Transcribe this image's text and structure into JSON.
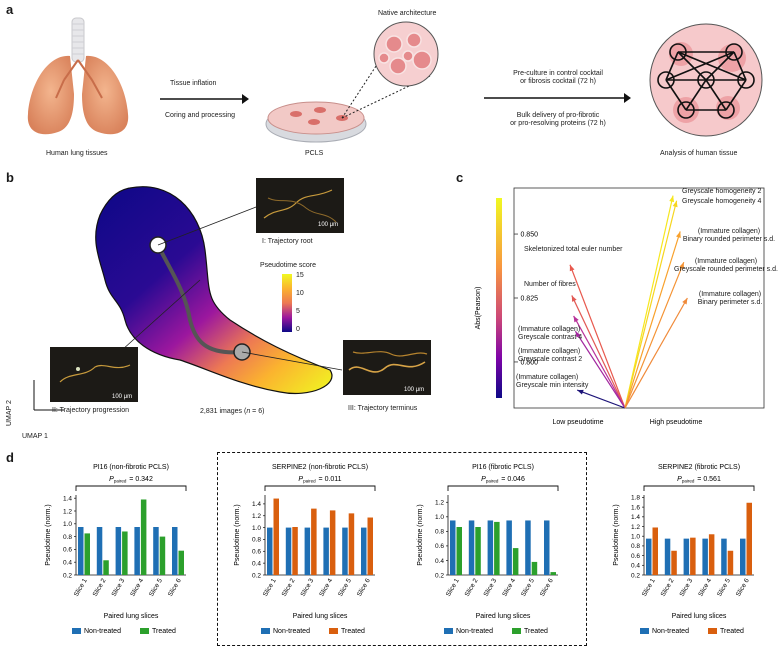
{
  "panel_a": {
    "letter": "a",
    "lung_label": "Human lung tissues",
    "step1_top": "Tissue inflation",
    "step1_bottom": "Coring and processing",
    "pcls_label": "PCLS",
    "native_label": "Native architecture",
    "step2_line1": "Pre-culture in control cocktail",
    "step2_line2": "or fibrosis cocktail (72 h)",
    "step2_line3": "Bulk delivery of pro-fibrotic",
    "step2_line4": "or pro-resolving proteins (72 h)",
    "analysis_label": "Analysis of human tissue"
  },
  "panel_b": {
    "letter": "b",
    "root_label": "I: Trajectory root",
    "progression_label": "II: Trajectory progression",
    "terminus_label": "III: Trajectory terminus",
    "scale_bar": "100 μm",
    "images_count_prefix": "2,831 images (",
    "images_count_n": "n",
    "images_count_suffix": " = 6)",
    "axis_y": "UMAP 2",
    "axis_x": "UMAP 1",
    "colorbar_title": "Pseudotime score",
    "colorbar_ticks": [
      "15",
      "10",
      "5",
      "0"
    ]
  },
  "panel_c": {
    "letter": "c",
    "chart_data": {
      "type": "scatter",
      "ylabel": "Abs(Pearson)",
      "categories": [
        "Low pseudotime",
        "High pseudotime"
      ],
      "yticks": [
        "0.850",
        "0.825",
        "0.800"
      ],
      "ylim": [
        0.782,
        0.868
      ],
      "origin": 0.782,
      "features": [
        {
          "name": "Greyscale homogeneity 2",
          "side": "high",
          "value": 0.865,
          "color": "#f6e71e"
        },
        {
          "name": "Greyscale homogeneity 4",
          "side": "high",
          "value": 0.863,
          "color": "#f6d51e"
        },
        {
          "name": "(Immature collagen) Binary rounded perimeter s.d.",
          "side": "high",
          "value": 0.851,
          "color": "#f8a12c"
        },
        {
          "name": "(Immature collagen) Greyscale rounded perimeter s.d.",
          "side": "high",
          "value": 0.839,
          "color": "#f49334"
        },
        {
          "name": "(Immature collagen) Binary perimeter s.d.",
          "side": "high",
          "value": 0.825,
          "color": "#f08a39"
        },
        {
          "name": "Skeletonized total euler number",
          "side": "low",
          "value": 0.838,
          "color": "#e8594e"
        },
        {
          "name": "Number of fibres",
          "side": "low",
          "value": 0.826,
          "color": "#e25a55"
        },
        {
          "name": "(Immature collagen) Greyscale contrast 4",
          "side": "low",
          "value": 0.818,
          "color": "#b8339a"
        },
        {
          "name": "(Immature collagen) Greyscale contrast 2",
          "side": "low",
          "value": 0.812,
          "color": "#a2279f"
        },
        {
          "name": "(Immature collagen) Greyscale min intensity",
          "side": "low",
          "value": 0.789,
          "color": "#1c1378"
        }
      ]
    },
    "label_gh2": "Greyscale homogeneity 2",
    "label_gh4": "Greyscale homogeneity 4",
    "label_ic": "(Immature collagen)",
    "label_brp": "Binary rounded perimeter s.d.",
    "label_grp": "Greyscale rounded perimeter s.d.",
    "label_bp": "Binary perimeter s.d.",
    "label_euler": "Skeletonized total euler number",
    "label_fibres": "Number of fibres",
    "label_gc4": "Greyscale contrast 4",
    "label_gc2": "Greyscale contrast 2",
    "label_gmin": "Greyscale min intensity"
  },
  "panel_d": {
    "letter": "d",
    "xlabel": "Paired lung slices",
    "ylabel": "Pseudotime (norm.)",
    "legend_nontreated": "Non-treated",
    "legend_treated": "Treated",
    "p_prefix": "P",
    "p_sub": "paired",
    "colors": {
      "nontreated": "#1f6fb4",
      "treated_green": "#2ca02c",
      "treated_orange": "#d95f0e"
    },
    "chart_data": [
      {
        "type": "bar",
        "title": "PI16 (non-fibrotic PCLS)",
        "p_value": "= 0.342",
        "categories": [
          "Slice 1",
          "Slice 2",
          "Slice 3",
          "Slice 4",
          "Slice 5",
          "Slice 6"
        ],
        "yticks": [
          "1.4",
          "1.2",
          "1.0",
          "0.8",
          "0.6",
          "0.4",
          "0.2"
        ],
        "ylim": [
          0.2,
          1.45
        ],
        "series": [
          {
            "name": "Non-treated",
            "values": [
              0.95,
              0.95,
              0.95,
              0.95,
              0.95,
              0.95
            ]
          },
          {
            "name": "Treated",
            "values": [
              0.85,
              0.43,
              0.88,
              1.38,
              0.8,
              0.58
            ]
          }
        ]
      },
      {
        "type": "bar",
        "title": "SERPINE2 (non-fibrotic PCLS)",
        "p_value": "= 0.011",
        "categories": [
          "Slice 1",
          "Slice 2",
          "Slice 3",
          "Slice 4",
          "Slice 5",
          "Slice 6"
        ],
        "yticks": [
          "1.4",
          "1.2",
          "1.0",
          "0.8",
          "0.6",
          "0.4",
          "0.2"
        ],
        "ylim": [
          0.2,
          1.55
        ],
        "series": [
          {
            "name": "Non-treated",
            "values": [
              1.0,
              1.0,
              1.0,
              1.0,
              1.0,
              1.0
            ]
          },
          {
            "name": "Treated",
            "values": [
              1.49,
              1.01,
              1.32,
              1.29,
              1.24,
              1.17
            ]
          }
        ]
      },
      {
        "type": "bar",
        "title": "PI16 (fibrotic PCLS)",
        "p_value": "= 0.046",
        "categories": [
          "Slice 1",
          "Slice 2",
          "Slice 3",
          "Slice 4",
          "Slice 5",
          "Slice 6"
        ],
        "yticks": [
          "1.2",
          "1.0",
          "0.8",
          "0.6",
          "0.4",
          "0.2"
        ],
        "ylim": [
          0.2,
          1.3
        ],
        "series": [
          {
            "name": "Non-treated",
            "values": [
              0.95,
              0.95,
              0.95,
              0.95,
              0.95,
              0.95
            ]
          },
          {
            "name": "Treated",
            "values": [
              0.86,
              0.86,
              0.93,
              0.57,
              0.38,
              0.24
            ]
          }
        ]
      },
      {
        "type": "bar",
        "title": "SERPINE2 (fibrotic PCLS)",
        "p_value": "= 0.561",
        "categories": [
          "Slice 1",
          "Slice 2",
          "Slice 3",
          "Slice 4",
          "Slice 5",
          "Slice 6"
        ],
        "yticks": [
          "1.8",
          "1.6",
          "1.4",
          "1.2",
          "1.0",
          "0.8",
          "0.6",
          "0.4",
          "0.2"
        ],
        "ylim": [
          0.2,
          1.85
        ],
        "series": [
          {
            "name": "Non-treated",
            "values": [
              0.95,
              0.95,
              0.95,
              0.95,
              0.95,
              0.95
            ]
          },
          {
            "name": "Treated",
            "values": [
              1.18,
              0.7,
              0.97,
              1.04,
              0.7,
              1.69
            ]
          }
        ]
      }
    ]
  }
}
